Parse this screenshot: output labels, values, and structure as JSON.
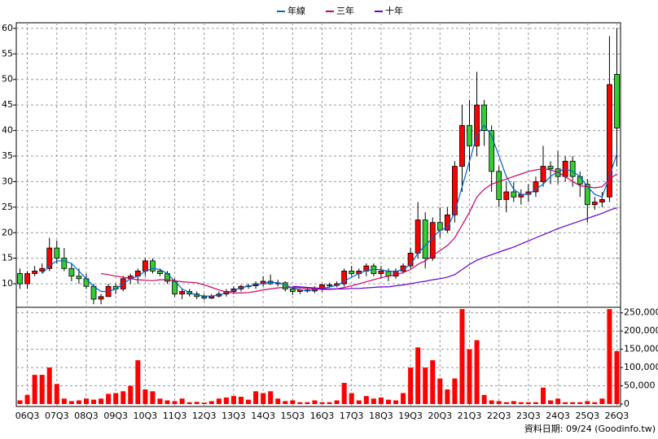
{
  "chart_data": {
    "type": "candlestick",
    "categories": [
      null,
      "06Q3",
      null,
      null,
      null,
      "07Q3",
      null,
      null,
      null,
      "08Q3",
      null,
      null,
      null,
      "09Q3",
      null,
      null,
      null,
      "10Q3",
      null,
      null,
      null,
      "11Q3",
      null,
      null,
      null,
      "12Q3",
      null,
      null,
      null,
      "13Q3",
      null,
      null,
      null,
      "14Q3",
      null,
      null,
      null,
      "15Q3",
      null,
      null,
      null,
      "16Q3",
      null,
      null,
      null,
      "17Q3",
      null,
      null,
      null,
      "18Q3",
      null,
      null,
      null,
      "19Q3",
      null,
      null,
      null,
      "20Q3",
      null,
      null,
      null,
      "21Q3",
      null,
      null,
      null,
      "22Q3",
      null,
      null,
      null,
      "23Q3",
      null,
      null,
      null,
      "24Q3",
      null,
      null,
      null,
      "25Q3",
      null,
      null,
      null,
      "26Q3"
    ],
    "open": [
      12,
      10,
      12,
      12.5,
      13,
      17,
      15,
      13,
      11.5,
      11,
      9.5,
      7,
      7.5,
      9.5,
      9,
      11,
      11.5,
      12.5,
      14.5,
      12.5,
      12,
      10.5,
      8,
      8.5,
      8,
      7.5,
      7.2,
      7.6,
      8,
      8.5,
      9,
      9.5,
      9.6,
      10,
      10.5,
      10,
      10.2,
      9,
      8.5,
      8.8,
      8.6,
      9,
      9.8,
      9.7,
      10,
      12.5,
      12,
      12.5,
      13.5,
      12,
      12.5,
      11.5,
      12.5,
      13.5,
      16,
      22.5,
      15,
      22,
      20.5,
      23.5,
      33,
      41,
      37,
      45,
      40,
      32,
      26.5,
      28,
      27,
      27.5,
      28,
      30,
      33,
      32.5,
      31,
      34,
      31,
      29.5,
      25.5,
      26,
      27,
      51
    ],
    "high": [
      13,
      12.5,
      13.5,
      14,
      19,
      18.5,
      17,
      14,
      13,
      12,
      10,
      8,
      10,
      10,
      11.5,
      12,
      13,
      15,
      15,
      13,
      12.5,
      11,
      9,
      9,
      8.5,
      8,
      8,
      8.5,
      9,
      9.5,
      9.8,
      10,
      10.5,
      11.5,
      11.8,
      10.8,
      10.5,
      9.3,
      9,
      9.2,
      9.5,
      10,
      10.2,
      10.5,
      13,
      13.5,
      13,
      14,
      14,
      13.5,
      13,
      13,
      14,
      17,
      26,
      24,
      23,
      25,
      25,
      34,
      45,
      46,
      51.5,
      46,
      41,
      33,
      30,
      30,
      28.5,
      29.5,
      31,
      37,
      34,
      36,
      35,
      35,
      32,
      30.5,
      27,
      28,
      58.5,
      60
    ],
    "low": [
      9,
      9,
      11.5,
      12,
      12.5,
      14,
      12.5,
      10.5,
      10,
      9,
      6,
      6,
      7.5,
      8,
      8.5,
      10,
      10,
      11.5,
      12,
      11.5,
      10,
      7.5,
      7,
      7.5,
      7,
      6.8,
      7,
      7.3,
      7.5,
      8,
      8.5,
      9,
      9,
      9.5,
      9.8,
      9.5,
      8.5,
      7.8,
      8,
      8.3,
      8.2,
      8.5,
      9.2,
      9.3,
      9.5,
      11.5,
      11,
      11.5,
      11.5,
      11,
      10.5,
      11,
      12,
      13,
      15,
      13,
      14.5,
      19,
      20,
      22,
      28,
      32,
      35,
      37,
      28,
      25,
      24,
      26,
      25.5,
      26,
      27,
      29,
      29.5,
      29.5,
      30,
      29,
      27,
      22,
      24.5,
      25,
      26,
      33
    ],
    "close": [
      10,
      12,
      12.5,
      13,
      17,
      15,
      13,
      11.5,
      11,
      9.5,
      7,
      7.5,
      9.5,
      9,
      11,
      11.5,
      12.5,
      14.5,
      12.5,
      12,
      10.5,
      8,
      8.5,
      8,
      7.5,
      7.2,
      7.6,
      8,
      8.5,
      9,
      9.5,
      9.6,
      10,
      10.5,
      10,
      10.2,
      9,
      8.5,
      8.8,
      8.6,
      9,
      9.8,
      9.7,
      10,
      12.5,
      12,
      12.5,
      13.5,
      12,
      12.5,
      11.5,
      12.5,
      13.5,
      16,
      22.5,
      15,
      22,
      20.5,
      23.5,
      33,
      41,
      37,
      45,
      40,
      32,
      26.5,
      28,
      27,
      27.5,
      28,
      30,
      33,
      32.5,
      31,
      34,
      31,
      29.5,
      25.5,
      26,
      26.5,
      49,
      40.5
    ],
    "up_color": "#ff0000",
    "down_color": "#33cc33",
    "series": [
      {
        "name": "年線",
        "color": "#0066cc",
        "values": [
          null,
          null,
          null,
          12,
          13.5,
          14.5,
          14.5,
          14,
          12.5,
          11,
          9.5,
          8.5,
          8.5,
          9,
          10,
          11,
          11.5,
          12.5,
          13,
          12.8,
          12,
          10.5,
          9,
          8.3,
          7.8,
          7.6,
          7.6,
          7.8,
          8.2,
          8.7,
          9.2,
          9.5,
          9.8,
          10.1,
          10.3,
          10.2,
          9.8,
          9.2,
          8.8,
          8.7,
          8.8,
          9.1,
          9.4,
          9.7,
          10.5,
          11.3,
          12,
          12.6,
          12.8,
          12.8,
          12.4,
          12.4,
          12.8,
          13.8,
          16,
          17.5,
          19,
          20.5,
          21,
          24,
          29,
          34,
          39,
          41,
          39,
          35,
          31,
          28.5,
          27.5,
          27.5,
          28.5,
          29.5,
          31,
          32,
          32.5,
          32,
          31,
          29,
          27.5,
          27,
          31,
          35.5
        ]
      },
      {
        "name": "三年",
        "color": "#cc0066",
        "values": [
          null,
          null,
          null,
          null,
          null,
          null,
          null,
          null,
          null,
          null,
          null,
          12,
          11.8,
          11.5,
          11.3,
          11,
          10.8,
          10.7,
          10.6,
          10.8,
          10.8,
          10.6,
          10.4,
          10.3,
          10.2,
          9.8,
          9.3,
          8.8,
          8.4,
          8.2,
          8.2,
          8.3,
          8.5,
          8.8,
          9,
          9.2,
          9.3,
          9.3,
          9.2,
          9.1,
          9,
          8.9,
          8.9,
          9,
          9.3,
          9.6,
          10,
          10.4,
          10.8,
          11.2,
          11.5,
          11.8,
          12.2,
          12.8,
          13.8,
          14.5,
          15.5,
          16.5,
          17.5,
          19,
          21.5,
          24,
          27,
          28.5,
          29.5,
          30,
          30.5,
          31,
          31.5,
          32,
          32.3,
          32.5,
          32.3,
          31.8,
          31,
          30,
          29.2,
          29,
          28.8,
          29,
          30.5,
          31.5
        ]
      },
      {
        "name": "十年",
        "color": "#6600cc",
        "values": [
          null,
          null,
          null,
          null,
          null,
          null,
          null,
          null,
          null,
          null,
          null,
          null,
          null,
          null,
          null,
          null,
          null,
          null,
          null,
          null,
          null,
          null,
          null,
          null,
          null,
          null,
          null,
          null,
          null,
          null,
          null,
          null,
          null,
          null,
          null,
          null,
          null,
          9.5,
          9.4,
          9.3,
          9.2,
          9.1,
          9,
          9,
          9,
          9.1,
          9.1,
          9.2,
          9.3,
          9.4,
          9.4,
          9.6,
          9.8,
          10,
          10.3,
          10.5,
          10.8,
          11,
          11.3,
          11.8,
          12.8,
          13.8,
          14.6,
          15.2,
          15.7,
          16.2,
          16.7,
          17.2,
          17.8,
          18.4,
          19,
          19.6,
          20.2,
          20.8,
          21.3,
          21.8,
          22.3,
          22.8,
          23.3,
          23.8,
          24.4,
          24.9
        ]
      }
    ],
    "ylim": [
      5.4,
      61.1
    ],
    "yticks": [
      10,
      15,
      20,
      25,
      30,
      35,
      40,
      45,
      50,
      55,
      60
    ],
    "grid": true,
    "volume": {
      "color": "#ff0000",
      "values": [
        10000,
        25000,
        80000,
        80000,
        100000,
        55000,
        15000,
        8000,
        10000,
        15000,
        12000,
        15000,
        28000,
        30000,
        35000,
        50000,
        120000,
        40000,
        35000,
        15000,
        10000,
        8000,
        15000,
        5000,
        6000,
        4000,
        8000,
        15000,
        18000,
        22000,
        20000,
        12000,
        35000,
        30000,
        35000,
        15000,
        8000,
        10000,
        5000,
        5000,
        10000,
        5000,
        5000,
        10000,
        58000,
        30000,
        10000,
        22000,
        15000,
        18000,
        12000,
        10000,
        30000,
        100000,
        155000,
        100000,
        120000,
        70000,
        40000,
        70000,
        260000,
        150000,
        175000,
        25000,
        10000,
        8000,
        5000,
        8000,
        5000,
        5000,
        5000,
        45000,
        10000,
        15000,
        5000,
        5000,
        5000,
        8000,
        5000,
        15000,
        260000,
        145000
      ],
      "ylim": [
        0,
        265000
      ],
      "yticks": [
        0,
        {
          "value": 50000,
          "label": "50,000"
        },
        {
          "value": 100000,
          "label": "100,000"
        },
        {
          "value": 150000,
          "label": "150,000"
        },
        {
          "value": 200000,
          "label": "200,000"
        },
        {
          "value": 250000,
          "label": "250,000"
        }
      ]
    },
    "source": "資料日期: 09/24 (Goodinfo.tw)"
  }
}
